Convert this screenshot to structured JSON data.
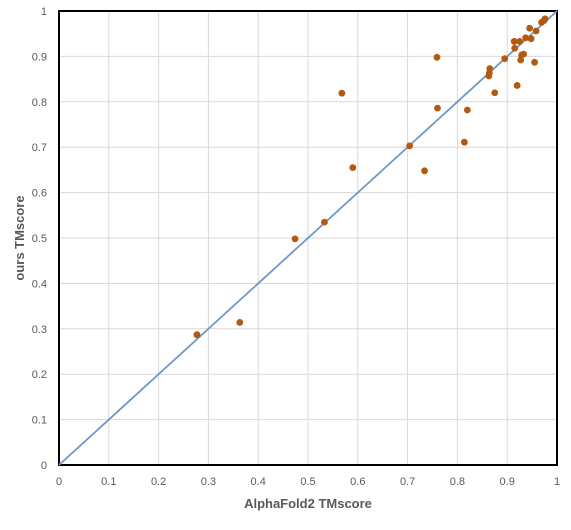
{
  "chart_data": {
    "type": "scatter",
    "title": "",
    "xlabel": "AlphaFold2 TMscore",
    "ylabel": "ours TMscore",
    "xlim": [
      0,
      1
    ],
    "ylim": [
      0,
      1
    ],
    "xticks": [
      "0",
      "0.1",
      "0.2",
      "0.3",
      "0.4",
      "0.5",
      "0.6",
      "0.7",
      "0.8",
      "0.9",
      "1"
    ],
    "yticks": [
      "0",
      "0.1",
      "0.2",
      "0.3",
      "0.4",
      "0.5",
      "0.6",
      "0.7",
      "0.8",
      "0.9",
      "1"
    ],
    "grid": true,
    "legend": "none",
    "reference_line": {
      "from": [
        0,
        0
      ],
      "to": [
        1,
        1
      ],
      "color": "#6f98c3"
    },
    "marker_color": "#b35a12",
    "points": [
      {
        "x": 0.277,
        "y": 0.287
      },
      {
        "x": 0.363,
        "y": 0.314
      },
      {
        "x": 0.474,
        "y": 0.498
      },
      {
        "x": 0.533,
        "y": 0.535
      },
      {
        "x": 0.568,
        "y": 0.819
      },
      {
        "x": 0.59,
        "y": 0.655
      },
      {
        "x": 0.704,
        "y": 0.703
      },
      {
        "x": 0.734,
        "y": 0.648
      },
      {
        "x": 0.759,
        "y": 0.898
      },
      {
        "x": 0.76,
        "y": 0.786
      },
      {
        "x": 0.814,
        "y": 0.711
      },
      {
        "x": 0.82,
        "y": 0.782
      },
      {
        "x": 0.863,
        "y": 0.857
      },
      {
        "x": 0.864,
        "y": 0.863
      },
      {
        "x": 0.865,
        "y": 0.873
      },
      {
        "x": 0.875,
        "y": 0.82
      },
      {
        "x": 0.895,
        "y": 0.895
      },
      {
        "x": 0.914,
        "y": 0.933
      },
      {
        "x": 0.915,
        "y": 0.918
      },
      {
        "x": 0.92,
        "y": 0.836
      },
      {
        "x": 0.925,
        "y": 0.933
      },
      {
        "x": 0.927,
        "y": 0.892
      },
      {
        "x": 0.929,
        "y": 0.903
      },
      {
        "x": 0.933,
        "y": 0.905
      },
      {
        "x": 0.937,
        "y": 0.941
      },
      {
        "x": 0.945,
        "y": 0.962
      },
      {
        "x": 0.948,
        "y": 0.939
      },
      {
        "x": 0.955,
        "y": 0.887
      },
      {
        "x": 0.958,
        "y": 0.956
      },
      {
        "x": 0.969,
        "y": 0.975
      },
      {
        "x": 0.974,
        "y": 0.979
      },
      {
        "x": 0.976,
        "y": 0.983
      }
    ]
  }
}
